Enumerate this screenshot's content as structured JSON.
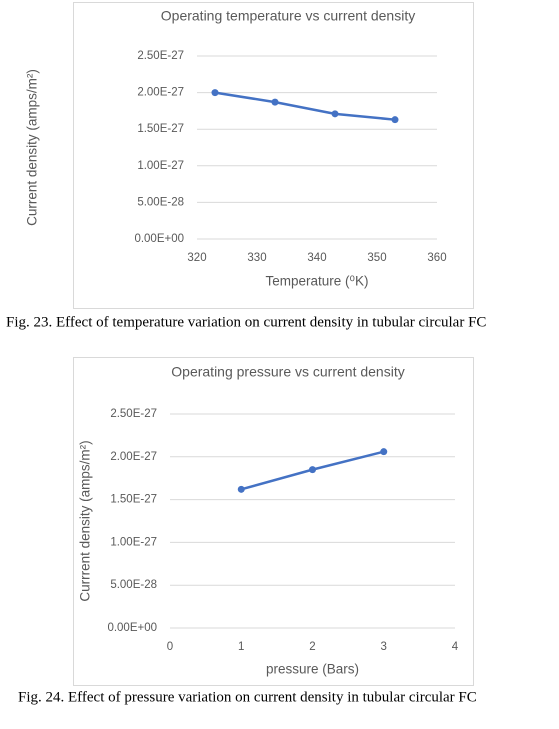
{
  "chart_data": [
    {
      "type": "line",
      "title": "Operating temperature vs current density",
      "x_label": "Temperature (⁰K)",
      "y_label": "Current density (amps/m²)",
      "x": [
        323,
        333,
        343,
        353
      ],
      "series": [
        {
          "color": "#4472c4",
          "values": [
            2e-27,
            1.87e-27,
            1.71e-27,
            1.63e-27
          ]
        }
      ],
      "xlim": [
        320,
        360
      ],
      "xticks": [
        320,
        330,
        340,
        350,
        360
      ],
      "ylim": [
        0,
        2.5e-27
      ],
      "yticks": [
        {
          "value": 0,
          "label": "0.00E+00"
        },
        {
          "value": 5e-28,
          "label": "5.00E-28"
        },
        {
          "value": 1e-27,
          "label": "1.00E-27"
        },
        {
          "value": 1.5e-27,
          "label": "1.50E-27"
        },
        {
          "value": 2e-27,
          "label": "2.00E-27"
        },
        {
          "value": 2.5e-27,
          "label": "2.50E-27"
        }
      ],
      "grid": true,
      "caption": "Fig. 23. Effect of temperature variation on current density in tubular circular FC"
    },
    {
      "type": "line",
      "title": "Operating pressure vs current density",
      "x_label": "pressure (Bars)",
      "y_label": "Currrent density (amps/m²)",
      "x": [
        1,
        2,
        3
      ],
      "series": [
        {
          "color": "#4472c4",
          "values": [
            1.62e-27,
            1.85e-27,
            2.06e-27
          ]
        }
      ],
      "xlim": [
        0,
        4
      ],
      "xticks": [
        0,
        1,
        2,
        3,
        4
      ],
      "ylim": [
        0,
        2.5e-27
      ],
      "yticks": [
        {
          "value": 0,
          "label": "0.00E+00"
        },
        {
          "value": 5e-28,
          "label": "5.00E-28"
        },
        {
          "value": 1e-27,
          "label": "1.00E-27"
        },
        {
          "value": 1.5e-27,
          "label": "1.50E-27"
        },
        {
          "value": 2e-27,
          "label": "2.00E-27"
        },
        {
          "value": 2.5e-27,
          "label": "2.50E-27"
        }
      ],
      "grid": true,
      "caption": "Fig. 24.  Effect of pressure variation on current density in tubular circular FC"
    }
  ]
}
